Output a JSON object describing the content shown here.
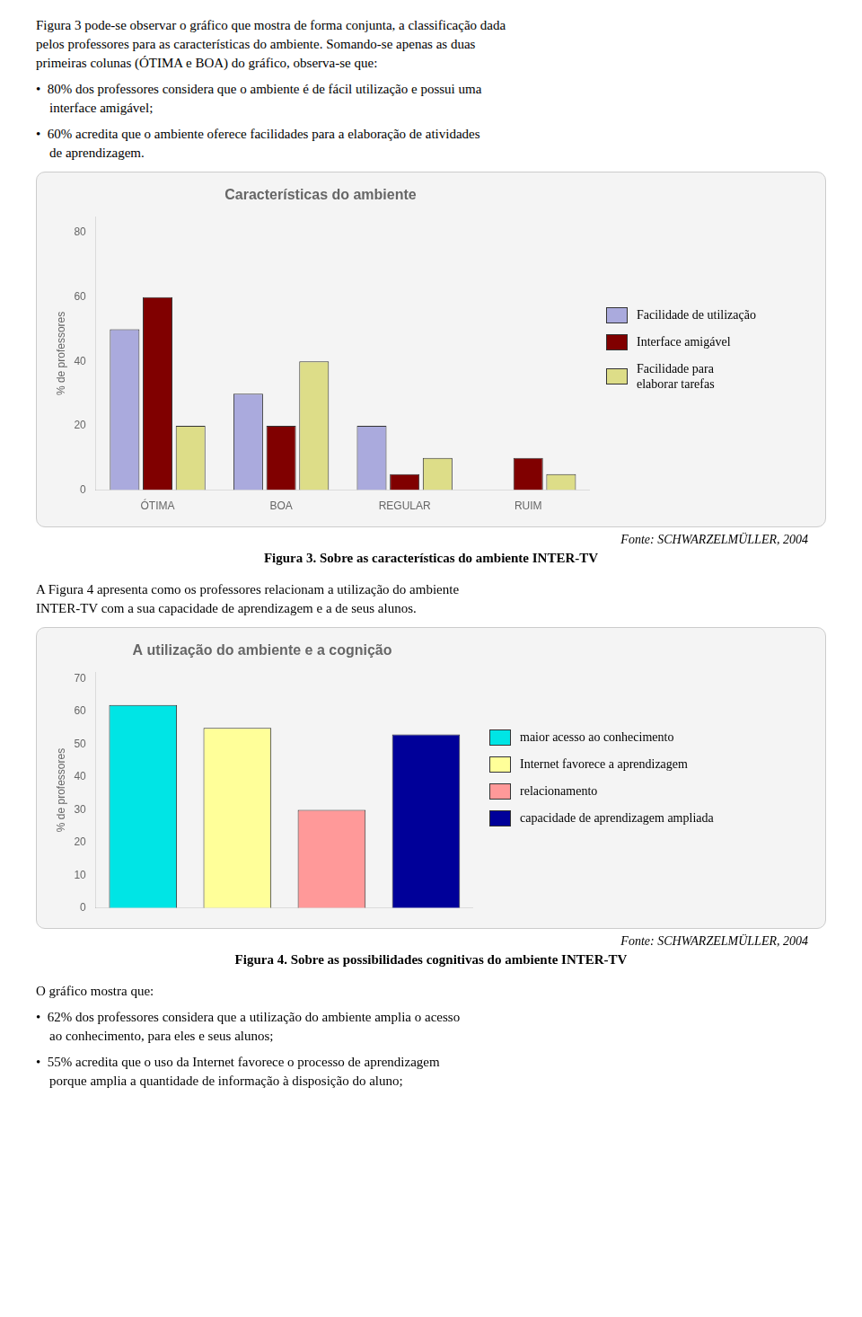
{
  "chart_data": [
    {
      "type": "bar",
      "title": "Características do ambiente",
      "categories": [
        "ÓTIMA",
        "BOA",
        "REGULAR",
        "RUIM"
      ],
      "series": [
        {
          "name": "Facilidade de utilização",
          "color": "#aaaadd",
          "values": [
            50,
            30,
            20,
            0
          ]
        },
        {
          "name": "Interface amigável",
          "color": "#800000",
          "values": [
            60,
            20,
            5,
            10
          ]
        },
        {
          "name": "Facilidade para\nelaborar tarefas",
          "color": "#dddd88",
          "values": [
            20,
            40,
            10,
            5
          ]
        }
      ],
      "ylabel": "% de professores",
      "ylim": [
        0,
        85
      ],
      "yticks": [
        0,
        20,
        40,
        60,
        80
      ],
      "grid": false,
      "legend": "right",
      "annotations": [
        "Figura 3 pode-se observar o gráfico que mostra de forma conjunta, a classificação dada\npelos professores para as características do ambiente. Somando-se apenas as duas\nprimeiras colunas (ÓTIMA e BOA) do gráfico, observa-se que:",
        "•  80% dos professores considera que o ambiente é de fácil utilização e possui uma\n    interface amigável;",
        "•  60% acredita que o ambiente oferece facilidades para a elaboração de atividades\n    de aprendizagem.",
        "Fonte:  SCHWARZELMÜLLER, 2004",
        "Figura 3. Sobre as características do ambiente INTER-TV"
      ]
    },
    {
      "type": "bar",
      "title": "A utilização do ambiente e a cognição",
      "categories": [
        "maior acesso ao conhecimento",
        "Internet favorece a aprendizagem",
        "relacionamento",
        "capacidade de aprendizagem ampliada"
      ],
      "values": [
        62,
        55,
        30,
        53
      ],
      "colors": [
        "#00e5e5",
        "#ffff99",
        "#ff9999",
        "#000099"
      ],
      "ylabel": "% de professores",
      "ylim": [
        0,
        72
      ],
      "yticks": [
        0,
        10,
        20,
        30,
        40,
        50,
        60,
        70
      ],
      "grid": false,
      "legend": "right",
      "tick_labels": "y",
      "annotations": [
        "A Figura 4 apresenta como os professores relacionam a utilização do ambiente\nINTER-TV com a sua capacidade de aprendizagem e a de seus alunos.",
        "Fonte:  SCHWARZELMÜLLER, 2004",
        "Figura 4. Sobre as possibilidades cognitivas do ambiente INTER-TV",
        "O gráfico mostra que:",
        "•  62% dos professores considera que a utilização do ambiente amplia o acesso\n    ao conhecimento, para eles e seus alunos;",
        "•  55% acredita que o uso da Internet favorece o processo de aprendizagem\n    porque amplia a quantidade de informação à disposição do aluno;"
      ]
    }
  ]
}
